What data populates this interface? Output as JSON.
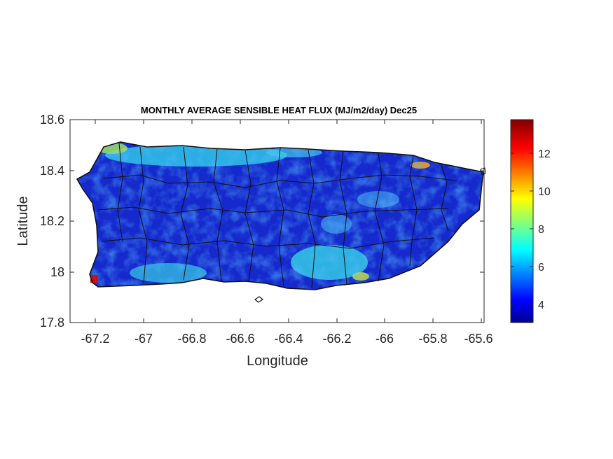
{
  "figure": {
    "title": "MONTHLY AVERAGE SENSIBLE HEAT FLUX (MJ/m2/day) Dec25",
    "xlabel": "Longitude",
    "ylabel": "Latitude"
  },
  "chart_data": {
    "type": "heatmap",
    "title": "MONTHLY AVERAGE SENSIBLE HEAT FLUX (MJ/m2/day) Dec25",
    "xlabel": "Longitude",
    "ylabel": "Latitude",
    "xlim": [
      -67.3,
      -65.58
    ],
    "ylim": [
      17.8,
      18.6
    ],
    "x_ticks": [
      "-67.2",
      "-67",
      "-66.8",
      "-66.6",
      "-66.4",
      "-66.2",
      "-66",
      "-65.8",
      "-65.6"
    ],
    "y_ticks": [
      "17.8",
      "18",
      "18.2",
      "18.4",
      "18.6"
    ],
    "colorbar": {
      "colormap": "jet",
      "range": [
        3.0,
        13.8
      ],
      "ticks": [
        "4",
        "6",
        "8",
        "10",
        "12"
      ]
    },
    "region": "Puerto Rico",
    "typical_value_range": [
      3,
      6
    ],
    "high_value_areas": [
      "southwest coast near -67.2, 17.97",
      "north coast",
      "south coast near -66.3 to -66.0",
      "northeast coast near -65.85, 18.4"
    ]
  }
}
